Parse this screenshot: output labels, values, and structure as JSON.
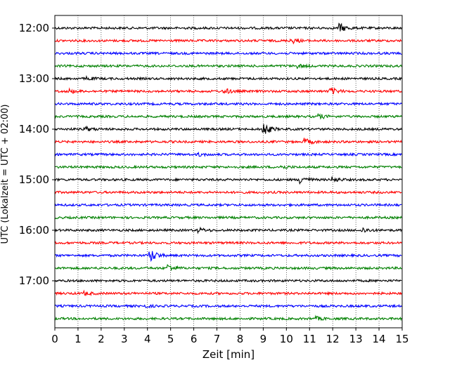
{
  "chart_data": {
    "type": "line",
    "xlabel": "Zeit  [min]",
    "ylabel": "UTC (Lokalzeit = UTC + 02:00)",
    "xlim": [
      0,
      15
    ],
    "x_ticks": [
      "0",
      "1",
      "2",
      "3",
      "4",
      "5",
      "6",
      "7",
      "8",
      "9",
      "10",
      "11",
      "12",
      "13",
      "14",
      "15"
    ],
    "x_grid": "dotted",
    "y_start": "12:00",
    "trace_interval_min": 15,
    "y_tick_labels": [
      "12:00",
      "13:00",
      "14:00",
      "15:00",
      "16:00",
      "17:00"
    ],
    "trace_colors": [
      "#000000",
      "#ff0000",
      "#0000ff",
      "#008000"
    ],
    "traces": [
      {
        "start": "12:00",
        "color": "#000000",
        "events": [
          [
            12.3,
            6
          ]
        ]
      },
      {
        "start": "12:15",
        "color": "#ff0000",
        "events": [
          [
            10.2,
            4
          ]
        ]
      },
      {
        "start": "12:30",
        "color": "#0000ff",
        "events": []
      },
      {
        "start": "12:45",
        "color": "#008000",
        "events": [
          [
            10.5,
            2
          ]
        ]
      },
      {
        "start": "13:00",
        "color": "#000000",
        "events": [
          [
            1.4,
            2
          ]
        ]
      },
      {
        "start": "13:15",
        "color": "#ff0000",
        "events": [
          [
            0.6,
            3
          ],
          [
            7.3,
            4
          ],
          [
            11.9,
            5
          ]
        ]
      },
      {
        "start": "13:30",
        "color": "#0000ff",
        "events": []
      },
      {
        "start": "13:45",
        "color": "#008000",
        "events": [
          [
            11.4,
            3
          ]
        ]
      },
      {
        "start": "14:00",
        "color": "#000000",
        "events": [
          [
            1.3,
            3
          ],
          [
            9.0,
            9
          ]
        ]
      },
      {
        "start": "14:15",
        "color": "#ff0000",
        "events": [
          [
            10.8,
            4
          ]
        ]
      },
      {
        "start": "14:30",
        "color": "#0000ff",
        "events": [
          [
            6.2,
            2
          ]
        ]
      },
      {
        "start": "14:45",
        "color": "#008000",
        "events": [
          [
            9.8,
            2
          ]
        ]
      },
      {
        "start": "15:00",
        "color": "#000000",
        "events": [
          [
            10.6,
            6
          ],
          [
            12.0,
            3
          ]
        ]
      },
      {
        "start": "15:15",
        "color": "#ff0000",
        "events": []
      },
      {
        "start": "15:30",
        "color": "#0000ff",
        "events": []
      },
      {
        "start": "15:45",
        "color": "#008000",
        "events": []
      },
      {
        "start": "16:00",
        "color": "#000000",
        "events": [
          [
            6.2,
            3
          ],
          [
            13.3,
            3
          ]
        ]
      },
      {
        "start": "16:15",
        "color": "#ff0000",
        "events": []
      },
      {
        "start": "16:30",
        "color": "#0000ff",
        "events": [
          [
            4.1,
            10
          ]
        ]
      },
      {
        "start": "16:45",
        "color": "#008000",
        "events": [
          [
            4.9,
            5
          ]
        ]
      },
      {
        "start": "17:00",
        "color": "#000000",
        "events": []
      },
      {
        "start": "17:15",
        "color": "#ff0000",
        "events": [
          [
            1.3,
            2
          ]
        ]
      },
      {
        "start": "17:30",
        "color": "#0000ff",
        "events": [
          [
            3.8,
            2
          ]
        ]
      },
      {
        "start": "17:45",
        "color": "#008000",
        "events": [
          [
            11.3,
            2
          ]
        ]
      }
    ]
  }
}
